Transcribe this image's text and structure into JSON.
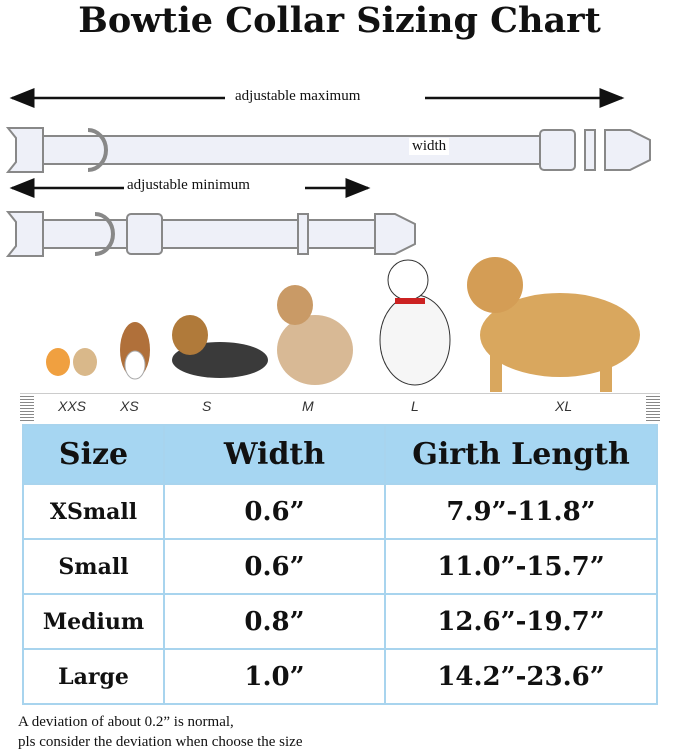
{
  "title": "Bowtie Collar Sizing Chart",
  "diagram": {
    "max_label": "adjustable maximum",
    "min_label": "adjustable minimum",
    "width_label": "width"
  },
  "size_scale": [
    "XXS",
    "XS",
    "S",
    "M",
    "L",
    "XL"
  ],
  "table": {
    "headers": [
      "Size",
      "Width",
      "Girth Length"
    ],
    "rows": [
      [
        "XSmall",
        "0.6”",
        "7.9”-11.8”"
      ],
      [
        "Small",
        "0.6”",
        "11.0”-15.7”"
      ],
      [
        "Medium",
        "0.8”",
        "12.6”-19.7”"
      ],
      [
        "Large",
        "1.0”",
        "14.2”-23.6”"
      ]
    ]
  },
  "note": [
    "A deviation of about 0.2” is normal,",
    "pls consider the deviation when choose the size"
  ],
  "colors": {
    "header_bg": "#a6d6f2",
    "border": "#a8d4ee"
  }
}
